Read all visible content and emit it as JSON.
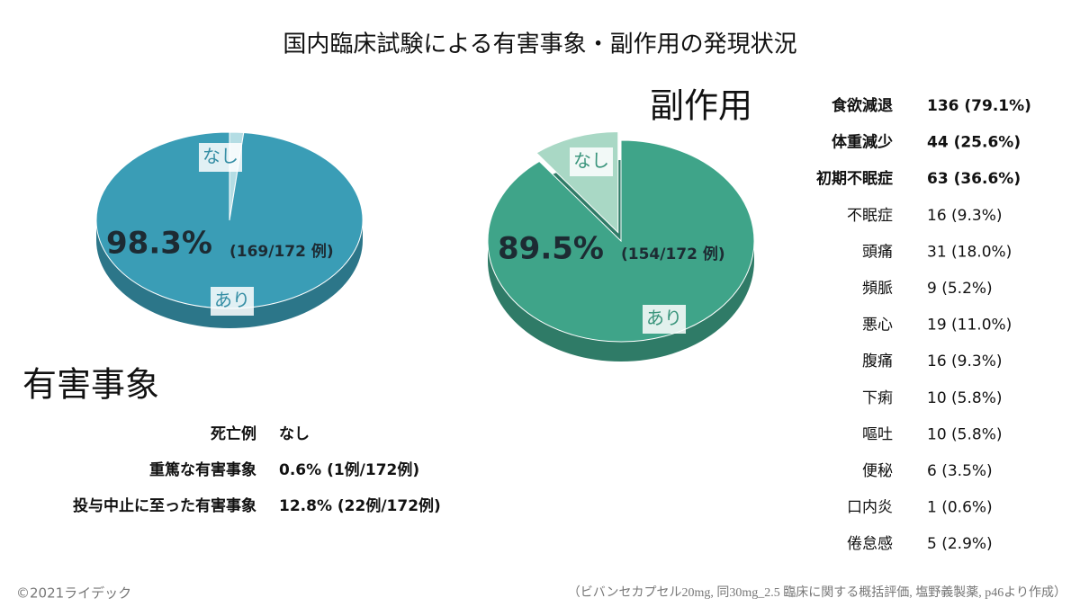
{
  "title": "国内臨床試験による有害事象・副作用の発現状況",
  "chart_data": [
    {
      "type": "pie",
      "title": "有害事象",
      "categories": [
        "あり",
        "なし"
      ],
      "values": [
        98.3,
        1.7
      ],
      "value_labels": [
        "98.3%",
        null
      ],
      "annotation": "(169/172 例)",
      "colors": [
        "#3a9db6",
        "#b4dde4"
      ],
      "direction": "clockwise"
    },
    {
      "type": "pie",
      "title": "副作用",
      "categories": [
        "あり",
        "なし"
      ],
      "values": [
        89.5,
        10.5
      ],
      "value_labels": [
        "89.5%",
        null
      ],
      "annotation": "(154/172 例)",
      "colors": [
        "#3fa489",
        "#a9d8c5"
      ],
      "direction": "counterclockwise"
    }
  ],
  "adverse_events": [
    [
      "死亡例",
      "なし"
    ],
    [
      "重篤な有害事象",
      "0.6% (1例/172例)"
    ],
    [
      "投与中止に至った有害事象",
      "12.8% (22例/172例)"
    ]
  ],
  "side_effects": [
    [
      "食欲減退",
      "136 (79.1%)"
    ],
    [
      "体重減少",
      "44 (25.6%)"
    ],
    [
      "初期不眠症",
      "63 (36.6%)"
    ],
    [
      "不眠症",
      "16 (9.3%)"
    ],
    [
      "頭痛",
      "31 (18.0%)"
    ],
    [
      "頻脈",
      "9 (5.2%)"
    ],
    [
      "悪心",
      "19 (11.0%)"
    ],
    [
      "腹痛",
      "16 (9.3%)"
    ],
    [
      "下痢",
      "10 (5.8%)"
    ],
    [
      "嘔吐",
      "10 (5.8%)"
    ],
    [
      "便秘",
      "6 (3.5%)"
    ],
    [
      "口内炎",
      "1 (0.6%)"
    ],
    [
      "倦怠感",
      "5 (2.9%)"
    ]
  ],
  "footer": {
    "copyright": "©2021ライデック",
    "source": "（ビバンセカプセル20mg, 同30mg_2.5 臨床に関する概括評価, 塩野義製薬, p46より作成）"
  }
}
